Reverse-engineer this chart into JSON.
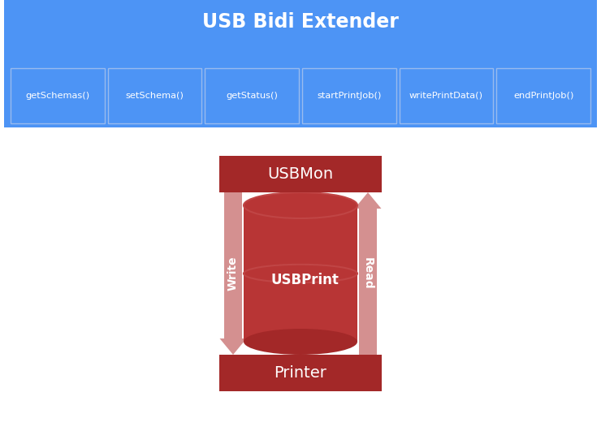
{
  "title": "USB Bidi Extender",
  "title_color": "#ffffff",
  "header_bg_color": "#4d94f5",
  "box_border_color": "#99bbee",
  "methods": [
    "getSchemas()",
    "setSchema()",
    "getStatus()",
    "startPrintJob()",
    "writePrintData()",
    "endPrintJob()"
  ],
  "usbmon_label": "USBMon",
  "usbprint_label": "USBPrint",
  "printer_label": "Printer",
  "write_label": "Write",
  "read_label": "Read",
  "dark_red": "#a32828",
  "medium_red": "#b83535",
  "light_red_arrow": "#d49090",
  "cylinder_ellipse_color": "#c04545",
  "bg_color": "#ffffff",
  "fig_w": 7.4,
  "fig_h": 5.47,
  "dpi": 100
}
